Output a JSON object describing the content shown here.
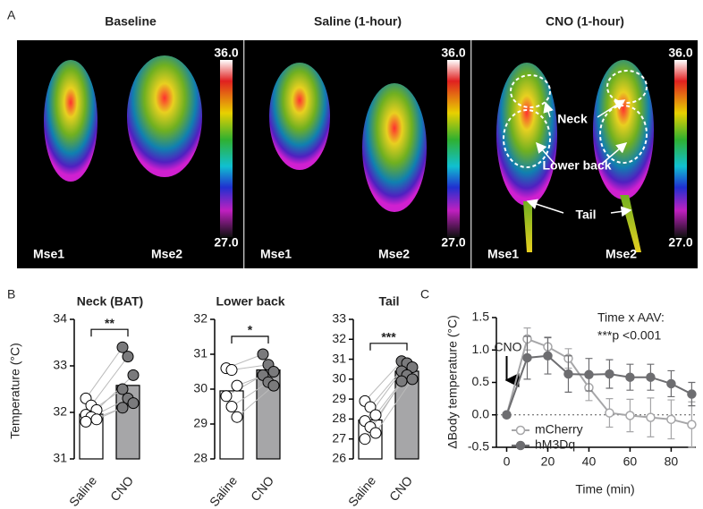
{
  "panel_labels": [
    "A",
    "B",
    "C"
  ],
  "panel_a": {
    "groups": [
      {
        "title": "Baseline",
        "mice": [
          "Mse1",
          "Mse2"
        ],
        "scale_max": "36.0",
        "scale_min": "27.0"
      },
      {
        "title": "Saline (1-hour)",
        "mice": [
          "Mse1",
          "Mse2"
        ],
        "scale_max": "36.0",
        "scale_min": "27.0"
      },
      {
        "title": "CNO (1-hour)",
        "mice": [
          "Mse1",
          "Mse2"
        ],
        "scale_max": "36.0",
        "scale_min": "27.0"
      }
    ],
    "annotations": [
      "Neck",
      "Lower back",
      "Tail"
    ]
  },
  "chart_data": [
    {
      "type": "bar",
      "title": "Neck (BAT)",
      "ylabel": "Temperature (°C)",
      "categories": [
        "Saline",
        "CNO"
      ],
      "values": [
        31.96,
        32.58
      ],
      "points": [
        [
          32.3,
          32.15,
          32.05,
          31.95,
          31.9,
          31.85,
          31.8
        ],
        [
          33.4,
          33.2,
          32.8,
          32.5,
          32.3,
          32.2,
          32.1
        ]
      ],
      "colors": [
        "#ffffff",
        "#a6a6a8"
      ],
      "annotation": "**",
      "ylim": [
        31,
        34
      ],
      "yticks": [
        31,
        32,
        33,
        34
      ]
    },
    {
      "type": "bar",
      "title": "Lower back",
      "categories": [
        "Saline",
        "CNO"
      ],
      "values": [
        29.95,
        30.55
      ],
      "points": [
        [
          30.6,
          30.55,
          30.1,
          29.8,
          29.5,
          29.2
        ],
        [
          31.0,
          30.7,
          30.5,
          30.4,
          30.2,
          30.1
        ]
      ],
      "colors": [
        "#ffffff",
        "#a6a6a8"
      ],
      "annotation": "*",
      "ylim": [
        28,
        32
      ],
      "yticks": [
        28,
        29,
        30,
        31,
        32
      ]
    },
    {
      "type": "bar",
      "title": "Tail",
      "categories": [
        "Saline",
        "CNO"
      ],
      "values": [
        27.95,
        30.4
      ],
      "points": [
        [
          28.9,
          28.6,
          28.2,
          27.9,
          27.6,
          27.3,
          27.0
        ],
        [
          30.9,
          30.8,
          30.6,
          30.4,
          30.2,
          30.0,
          29.9
        ]
      ],
      "colors": [
        "#ffffff",
        "#a6a6a8"
      ],
      "annotation": "***",
      "ylim": [
        26,
        33
      ],
      "yticks": [
        26,
        27,
        28,
        29,
        30,
        31,
        32,
        33
      ]
    },
    {
      "type": "line",
      "xlabel": "Time (min)",
      "ylabel": "ΔBody temperature (°C)",
      "annotations": [
        "Time x AAV:",
        "***p <0.001",
        "CNO"
      ],
      "x": [
        0,
        10,
        20,
        30,
        40,
        50,
        60,
        70,
        80,
        90
      ],
      "series": [
        {
          "name": "mCherry",
          "color": "#a6a6a8",
          "filled": false,
          "values": [
            0,
            1.17,
            1.05,
            0.87,
            0.42,
            0.03,
            -0.01,
            -0.04,
            -0.07,
            -0.15
          ],
          "errors": [
            0,
            0.17,
            0.15,
            0.15,
            0.2,
            0.22,
            0.25,
            0.3,
            0.3,
            0.35
          ]
        },
        {
          "name": "hM3Dq",
          "color": "#6d6d70",
          "filled": true,
          "values": [
            0,
            0.88,
            0.91,
            0.63,
            0.62,
            0.63,
            0.58,
            0.58,
            0.48,
            0.32
          ],
          "errors": [
            0,
            0.33,
            0.28,
            0.28,
            0.25,
            0.22,
            0.2,
            0.2,
            0.2,
            0.18
          ]
        }
      ],
      "xlim": [
        -5,
        92
      ],
      "xticks": [
        0,
        20,
        40,
        60,
        80
      ],
      "ylim": [
        -0.5,
        1.5
      ],
      "yticks": [
        -0.5,
        {
          "value": 0,
          "label": "0.0"
        },
        0.5,
        {
          "value": 1,
          "label": "1.0"
        },
        1.5
      ]
    }
  ]
}
